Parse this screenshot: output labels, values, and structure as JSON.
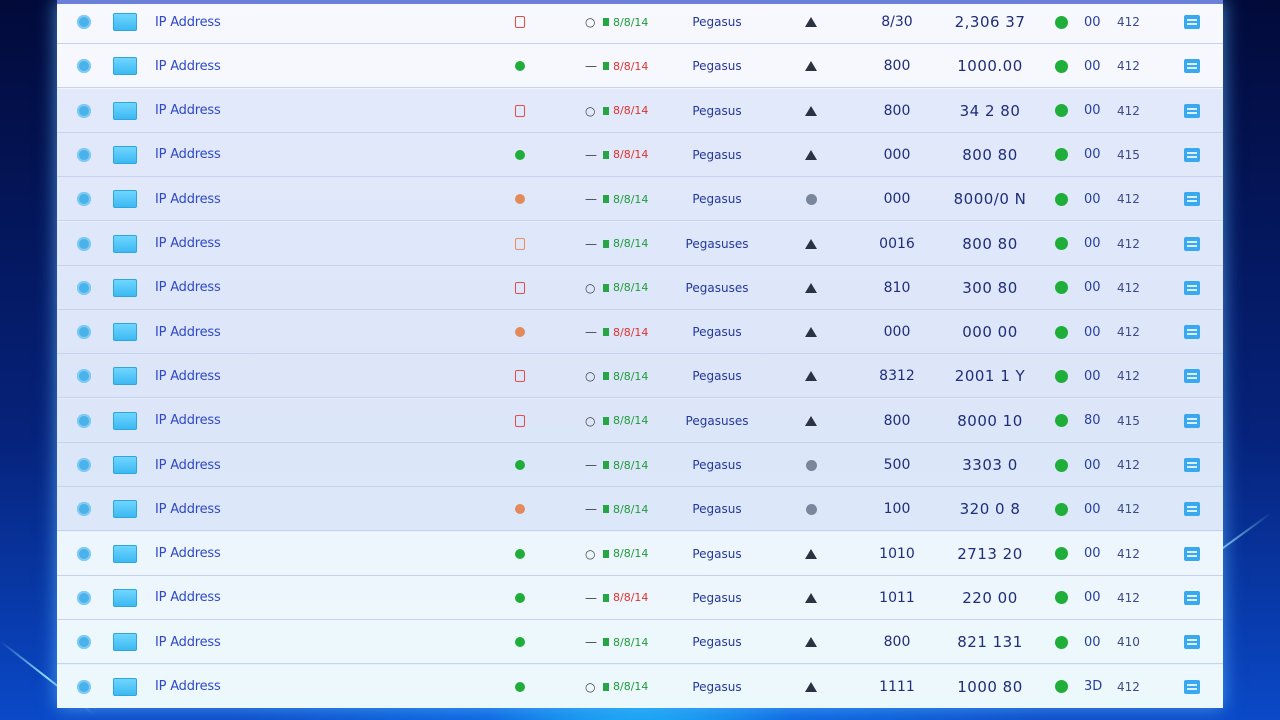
{
  "table": {
    "rows": [
      {
        "name": "IP Address",
        "state": "red-ring",
        "mode_glyph": "○",
        "mode_value": "8/8/14",
        "mode_color": "green",
        "type": "Pegasus",
        "trend": "up",
        "n1": "8/30",
        "n2": "2,306 37",
        "c1": "00",
        "c2": "412"
      },
      {
        "name": "IP Address",
        "state": "green",
        "mode_glyph": "—",
        "mode_value": "8/8/14",
        "mode_color": "red",
        "type": "Pegasus",
        "trend": "up",
        "n1": "800",
        "n2": "1000.00",
        "c1": "00",
        "c2": "412"
      },
      {
        "name": "IP Address",
        "state": "red-ring",
        "mode_glyph": "○",
        "mode_value": "8/8/14",
        "mode_color": "red",
        "type": "Pegasus",
        "trend": "up",
        "n1": "800",
        "n2": "34 2 80",
        "c1": "00",
        "c2": "412"
      },
      {
        "name": "IP Address",
        "state": "green",
        "mode_glyph": "—",
        "mode_value": "8/8/14",
        "mode_color": "red",
        "type": "Pegasus",
        "trend": "up",
        "n1": "000",
        "n2": "800 80",
        "c1": "00",
        "c2": "415"
      },
      {
        "name": "IP Address",
        "state": "orange",
        "mode_glyph": "—",
        "mode_value": "8/8/14",
        "mode_color": "green",
        "type": "Pegasus",
        "trend": "circle",
        "n1": "000",
        "n2": "8000/0 N",
        "c1": "00",
        "c2": "412"
      },
      {
        "name": "IP Address",
        "state": "orange-ring",
        "mode_glyph": "—",
        "mode_value": "8/8/14",
        "mode_color": "green",
        "type": "Pegasuses",
        "trend": "up",
        "n1": "0016",
        "n2": "800 80",
        "c1": "00",
        "c2": "412"
      },
      {
        "name": "IP Address",
        "state": "red-ring",
        "mode_glyph": "○",
        "mode_value": "8/8/14",
        "mode_color": "green",
        "type": "Pegasuses",
        "trend": "up",
        "n1": "810",
        "n2": "300 80",
        "c1": "00",
        "c2": "412"
      },
      {
        "name": "IP Address",
        "state": "orange",
        "mode_glyph": "—",
        "mode_value": "8/8/14",
        "mode_color": "red",
        "type": "Pegasus",
        "trend": "up",
        "n1": "000",
        "n2": "000 00",
        "c1": "00",
        "c2": "412"
      },
      {
        "name": "IP Address",
        "state": "red-ring",
        "mode_glyph": "○",
        "mode_value": "8/8/14",
        "mode_color": "green",
        "type": "Pegasus",
        "trend": "up",
        "n1": "8312",
        "n2": "2001 1 Y",
        "c1": "00",
        "c2": "412"
      },
      {
        "name": "IP Address",
        "state": "red-ring",
        "mode_glyph": "○",
        "mode_value": "8/8/14",
        "mode_color": "green",
        "type": "Pegasuses",
        "trend": "up",
        "n1": "800",
        "n2": "8000 10",
        "c1": "80",
        "c2": "415"
      },
      {
        "name": "IP Address",
        "state": "green",
        "mode_glyph": "—",
        "mode_value": "8/8/14",
        "mode_color": "green",
        "type": "Pegasus",
        "trend": "circle",
        "n1": "500",
        "n2": "3303 0",
        "c1": "00",
        "c2": "412"
      },
      {
        "name": "IP Address",
        "state": "orange",
        "mode_glyph": "—",
        "mode_value": "8/8/14",
        "mode_color": "green",
        "type": "Pegasus",
        "trend": "circle",
        "n1": "100",
        "n2": "320 0 8",
        "c1": "00",
        "c2": "412"
      },
      {
        "name": "IP Address",
        "state": "green",
        "mode_glyph": "○",
        "mode_value": "8/8/14",
        "mode_color": "green",
        "type": "Pegasus",
        "trend": "up",
        "n1": "1010",
        "n2": "2713 20",
        "c1": "00",
        "c2": "412"
      },
      {
        "name": "IP Address",
        "state": "green",
        "mode_glyph": "—",
        "mode_value": "8/8/14",
        "mode_color": "red",
        "type": "Pegasus",
        "trend": "up",
        "n1": "1011",
        "n2": "220 00",
        "c1": "00",
        "c2": "412"
      },
      {
        "name": "IP Address",
        "state": "green",
        "mode_glyph": "—",
        "mode_value": "8/8/14",
        "mode_color": "green",
        "type": "Pegasus",
        "trend": "up",
        "n1": "800",
        "n2": "821 131",
        "c1": "00",
        "c2": "410"
      },
      {
        "name": "IP Address",
        "state": "green",
        "mode_glyph": "○",
        "mode_value": "8/8/14",
        "mode_color": "green",
        "type": "Pegasus",
        "trend": "up",
        "n1": "1111",
        "n2": "1000 80",
        "c1": "3D",
        "c2": "412"
      }
    ]
  }
}
